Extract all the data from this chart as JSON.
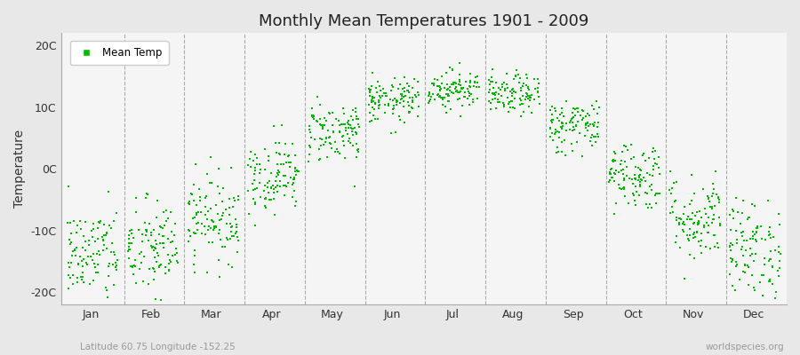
{
  "title": "Monthly Mean Temperatures 1901 - 2009",
  "ylabel": "Temperature",
  "xlabel_labels": [
    "Jan",
    "Feb",
    "Mar",
    "Apr",
    "May",
    "Jun",
    "Jul",
    "Aug",
    "Sep",
    "Oct",
    "Nov",
    "Dec"
  ],
  "ytick_labels": [
    "-20C",
    "-10C",
    "0C",
    "10C",
    "20C"
  ],
  "ytick_values": [
    -20,
    -10,
    0,
    10,
    20
  ],
  "ylim": [
    -22,
    22
  ],
  "dot_color": "#00BB00",
  "dot_size": 3,
  "background_color": "#e8e8e8",
  "plot_bg_color": "#f5f5f5",
  "subtitle_left": "Latitude 60.75 Longitude -152.25",
  "subtitle_right": "worldspecies.org",
  "legend_label": "Mean Temp",
  "num_years": 109,
  "monthly_means": [
    -14,
    -13,
    -8,
    -1,
    6,
    11,
    13,
    12,
    7,
    -1,
    -8,
    -13
  ],
  "monthly_spreads": [
    4.0,
    4.0,
    3.5,
    3.0,
    2.5,
    1.8,
    1.6,
    1.6,
    2.2,
    2.8,
    3.5,
    4.0
  ]
}
